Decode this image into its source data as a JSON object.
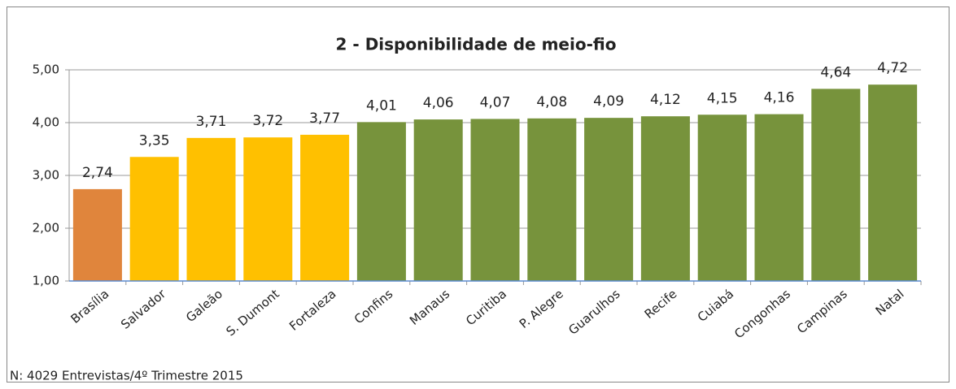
{
  "chart_data": {
    "type": "bar",
    "title": "2 - Disponibilidade de meio-fio",
    "categories": [
      "Brasília",
      "Salvador",
      "Galeão",
      "S. Dumont",
      "Fortaleza",
      "Confins",
      "Manaus",
      "Curitiba",
      "P. Alegre",
      "Guarulhos",
      "Recife",
      "Cuiabá",
      "Congonhas",
      "Campinas",
      "Natal"
    ],
    "values": [
      2.74,
      3.35,
      3.71,
      3.72,
      3.77,
      4.01,
      4.06,
      4.07,
      4.08,
      4.09,
      4.12,
      4.15,
      4.16,
      4.64,
      4.72
    ],
    "value_labels": [
      "2,74",
      "3,35",
      "3,71",
      "3,72",
      "3,77",
      "4,01",
      "4,06",
      "4,07",
      "4,08",
      "4,09",
      "4,12",
      "4,15",
      "4,16",
      "4,64",
      "4,72"
    ],
    "colors": [
      "#e0853c",
      "#ffc000",
      "#ffc000",
      "#ffc000",
      "#ffc000",
      "#77933c",
      "#77933c",
      "#77933c",
      "#77933c",
      "#77933c",
      "#77933c",
      "#77933c",
      "#77933c",
      "#77933c",
      "#77933c"
    ],
    "ylim": [
      1,
      5
    ],
    "yticks": [
      {
        "value": 1,
        "label": "1,00"
      },
      {
        "value": 2,
        "label": "2,00"
      },
      {
        "value": 3,
        "label": "3,00"
      },
      {
        "value": 4,
        "label": "4,00"
      },
      {
        "value": 5,
        "label": "5,00"
      }
    ],
    "grid": true,
    "note": "N: 4029 Entrevistas/4º Trimestre 2015"
  }
}
